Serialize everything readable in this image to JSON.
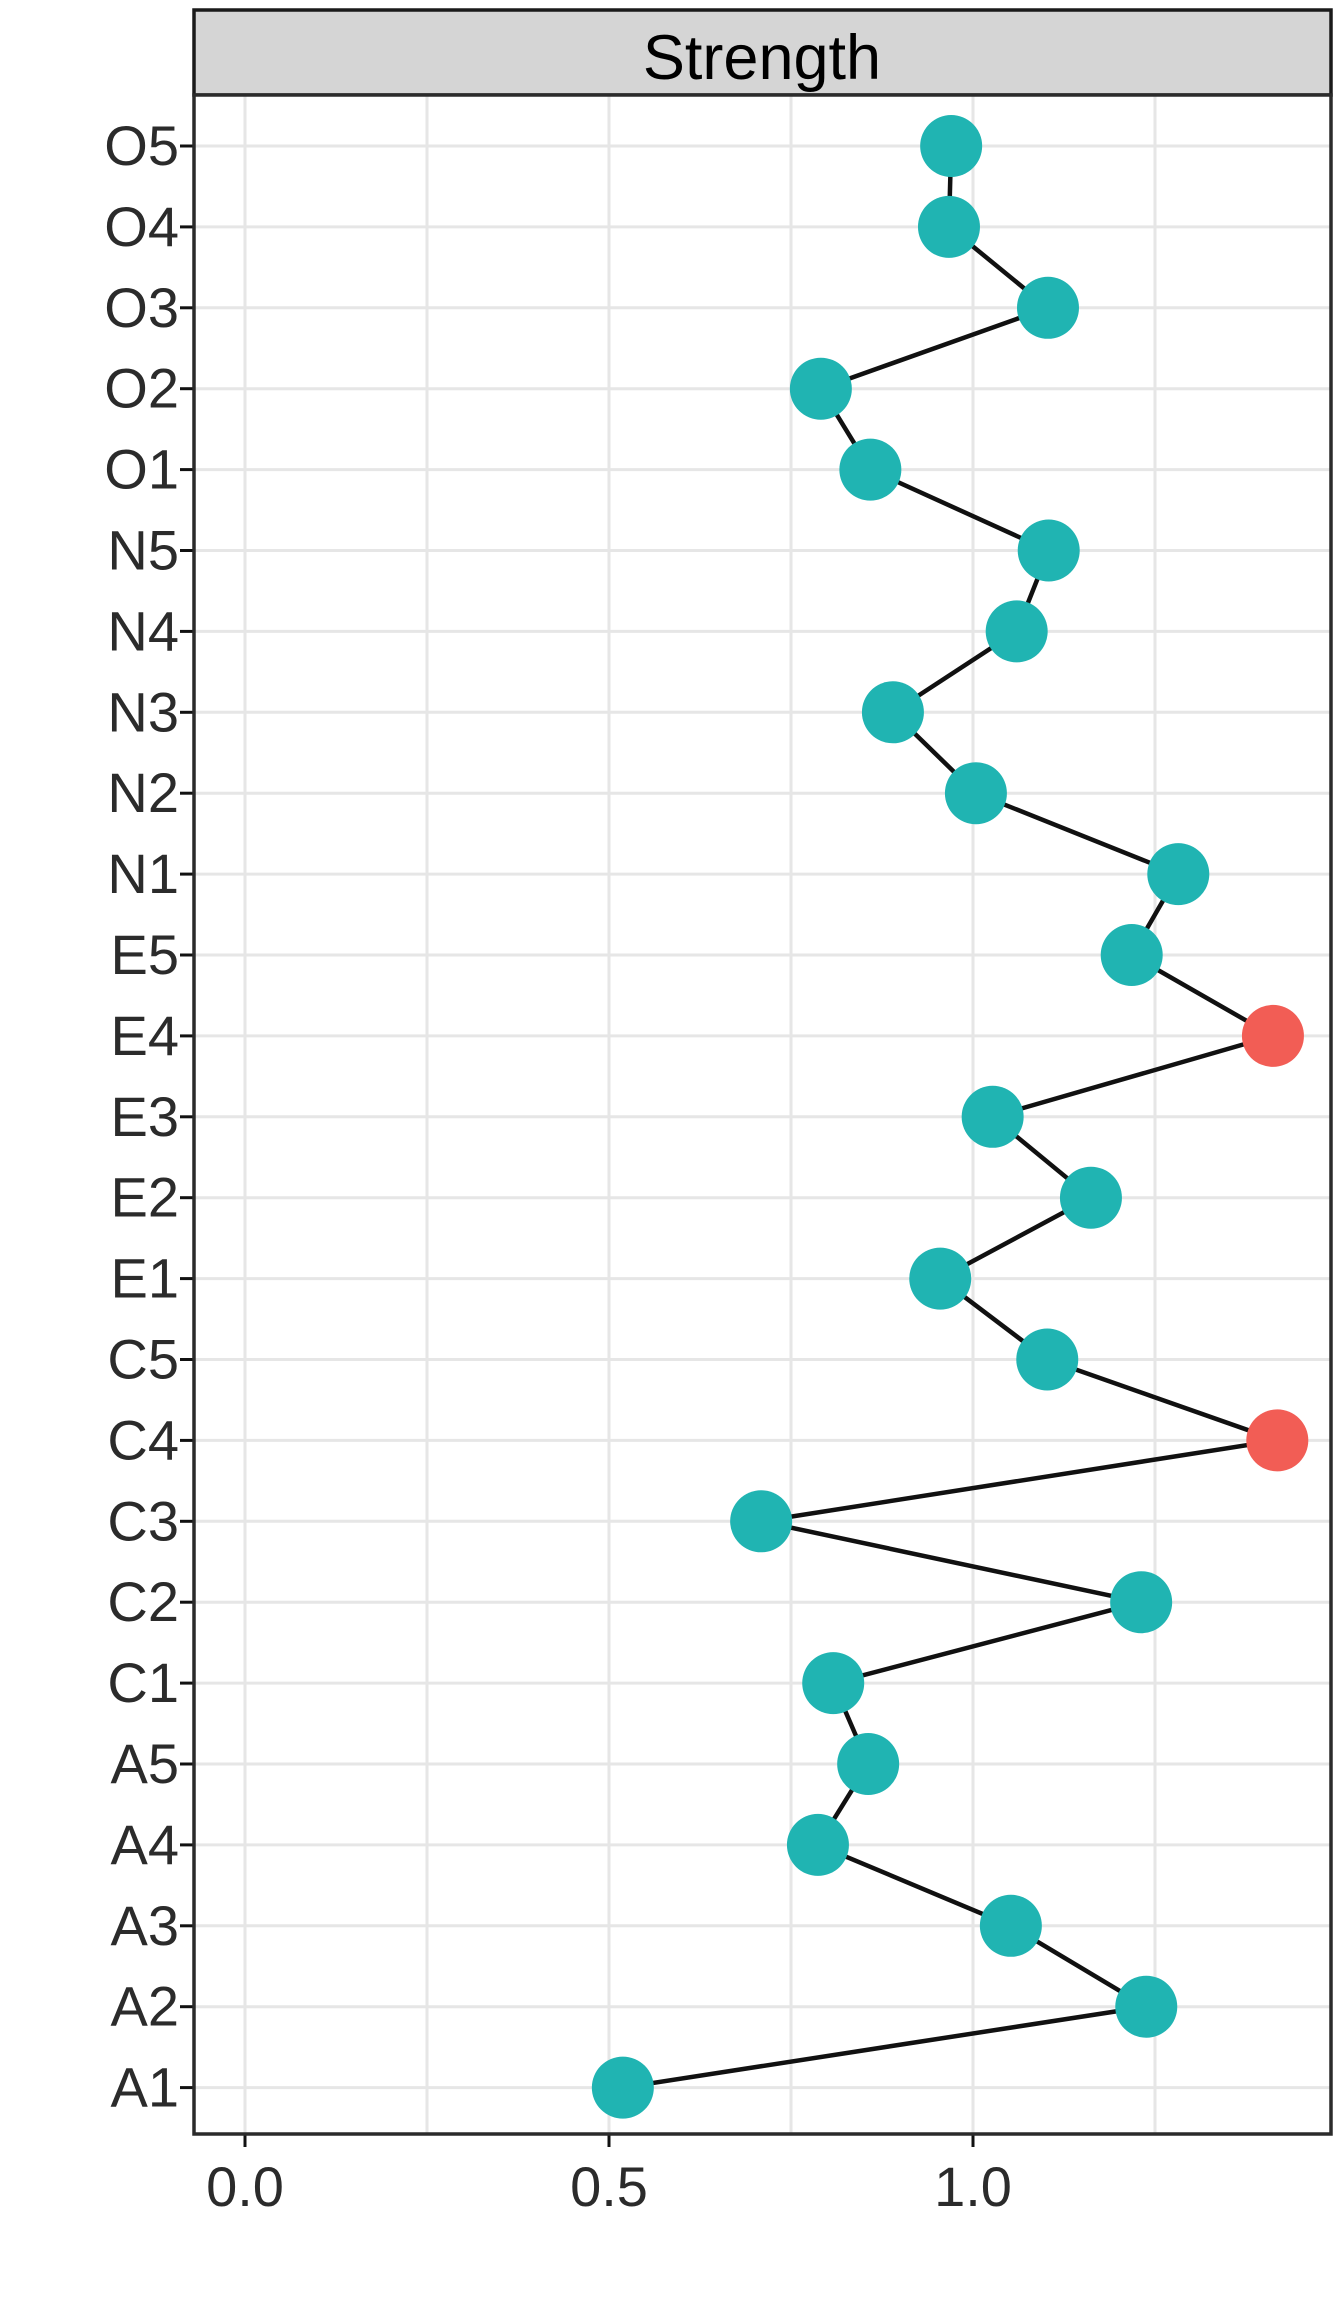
{
  "figure": {
    "kind": "faceted horizontal dot-line plot (ggplot style centrality plot)",
    "facet_strip_title": "Strength",
    "colors": {
      "teal_point": "#20B4B2",
      "red_point": "#F25D55",
      "line": "#111111",
      "grid": "#E6E6E6",
      "panel_border": "#2B2B2B",
      "strip_fill": "#D5D5D5",
      "strip_border": "#1A1A1A",
      "axis_text": "#2B2B2B",
      "tick": "#111111",
      "panel_bg": "#FFFFFF",
      "strip_text": "#000000"
    }
  },
  "chart_data": {
    "type": "scatter",
    "subtype": "horizontal-dot-plot-with-connecting-line",
    "title": "Strength",
    "xlabel": "",
    "ylabel": "",
    "legend": "none",
    "grid": "on",
    "x_ticks": [
      0,
      0.5,
      1
    ],
    "x_tick_labels": [
      "0.0",
      "0.5",
      "1.0"
    ],
    "x_minor_gridlines": [
      0.25,
      0.75,
      1.25
    ],
    "x_panel_range": [
      -0.07,
      1.495
    ],
    "categories_top_to_bottom": [
      "O5",
      "O4",
      "O3",
      "O2",
      "O1",
      "N5",
      "N4",
      "N3",
      "N2",
      "N1",
      "E5",
      "E4",
      "E3",
      "E2",
      "E1",
      "C5",
      "C4",
      "C3",
      "C2",
      "C1",
      "A5",
      "A4",
      "A3",
      "A2",
      "A1"
    ],
    "series": [
      {
        "name": "Strength",
        "values_top_to_bottom": [
          0.97,
          0.967,
          1.103,
          0.791,
          0.859,
          1.104,
          1.06,
          0.89,
          1.004,
          1.282,
          1.218,
          1.412,
          1.027,
          1.162,
          0.955,
          1.102,
          1.418,
          0.709,
          1.231,
          0.808,
          0.856,
          0.787,
          1.052,
          1.238,
          0.519
        ]
      }
    ],
    "highlighted_categories": [
      "E4",
      "C4"
    ],
    "point_color_rule": "highlighted categories are red, all others teal"
  }
}
